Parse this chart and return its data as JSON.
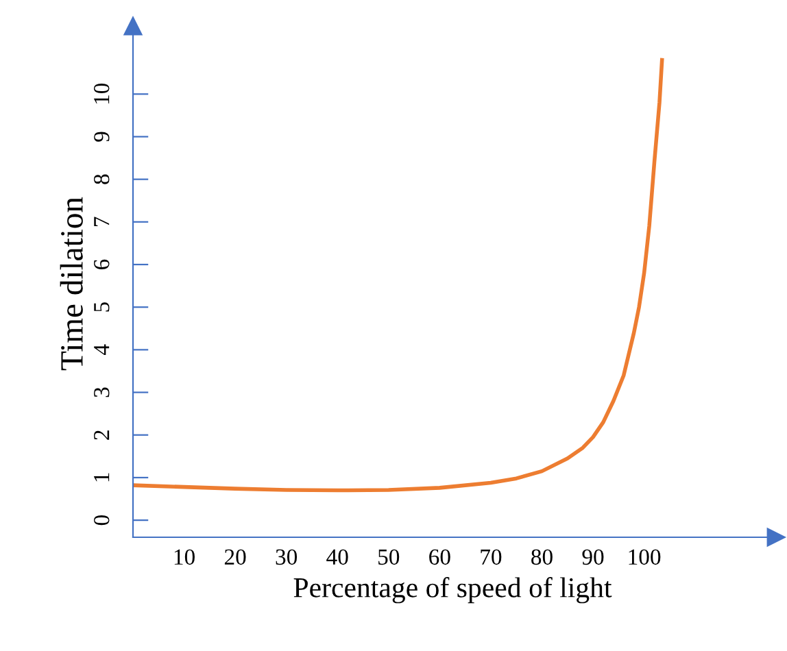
{
  "chart_data": {
    "type": "line",
    "xlabel": "Percentage of speed of light",
    "ylabel": "Time dilation",
    "x": [
      0,
      10,
      20,
      30,
      40,
      50,
      60,
      70,
      75,
      80,
      85,
      88,
      90,
      92,
      94,
      96,
      98,
      99,
      100,
      101,
      102,
      103,
      103.5
    ],
    "series": [
      {
        "color": "#ed7d31",
        "values": [
          0.82,
          0.78,
          0.74,
          0.71,
          0.7,
          0.71,
          0.76,
          0.88,
          0.98,
          1.15,
          1.45,
          1.7,
          1.95,
          2.3,
          2.8,
          3.4,
          4.4,
          5.0,
          5.8,
          6.9,
          8.4,
          9.8,
          10.8
        ]
      }
    ],
    "xlim": [
      0,
      125
    ],
    "ylim": [
      -0.4,
      11.5
    ],
    "xticks": [
      10,
      20,
      30,
      40,
      50,
      60,
      70,
      80,
      90,
      100
    ],
    "yticks": [
      0,
      1,
      2,
      3,
      4,
      5,
      6,
      7,
      8,
      9,
      10
    ],
    "grid": false,
    "legend": false,
    "marker": "none",
    "line_style": "solid"
  }
}
